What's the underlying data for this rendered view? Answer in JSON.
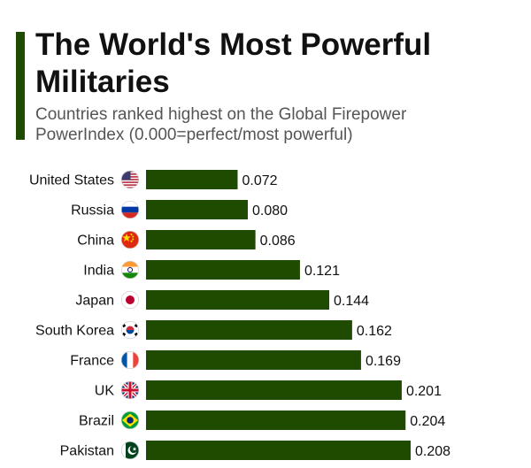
{
  "header": {
    "title": "The World's Most Powerful Militaries",
    "subtitle": "Countries ranked highest on the Global Firepower PowerIndex (0.000=perfect/most powerful)"
  },
  "colors": {
    "bar": "#1f4b00",
    "accent": "#1f4b00",
    "text": "#111111",
    "subtitle": "#555555"
  },
  "chart_data": {
    "type": "bar",
    "orientation": "horizontal",
    "categories": [
      "United States",
      "Russia",
      "China",
      "India",
      "Japan",
      "South Korea",
      "France",
      "UK",
      "Brazil",
      "Pakistan"
    ],
    "values": [
      0.072,
      0.08,
      0.086,
      0.121,
      0.144,
      0.162,
      0.169,
      0.201,
      0.204,
      0.208
    ],
    "value_labels": [
      "0.072",
      "0.080",
      "0.086",
      "0.121",
      "0.144",
      "0.162",
      "0.169",
      "0.201",
      "0.204",
      "0.208"
    ],
    "flag_icons": [
      "us-flag-icon",
      "russia-flag-icon",
      "china-flag-icon",
      "india-flag-icon",
      "japan-flag-icon",
      "south-korea-flag-icon",
      "france-flag-icon",
      "uk-flag-icon",
      "brazil-flag-icon",
      "pakistan-flag-icon"
    ],
    "xlim": [
      0,
      0.208
    ],
    "grid": false,
    "legend": "none"
  }
}
